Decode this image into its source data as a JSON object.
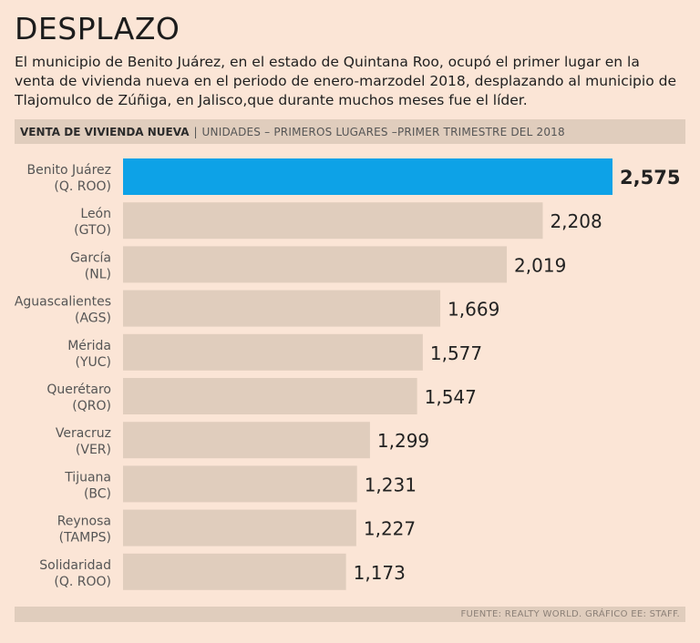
{
  "title": "DESPLAZO",
  "intro": "El municipio de Benito Juárez, en el estado de Quintana Roo, ocupó el primer lugar en la venta de vivienda nueva en el periodo de enero-marzodel 2018, desplazando al municipio de Tlajomulco de Zúñiga, en Jalisco,que durante muchos meses fue el líder.",
  "header": {
    "bold": "VENTA DE VIVIENDA NUEVA",
    "separator": "|",
    "sub": "UNIDADES – PRIMEROS LUGARES –PRIMER TRIMESTRE DEL 2018"
  },
  "footer": "FUENTE: REALTY WORLD. GRÁFICO EE: STAFF.",
  "colors": {
    "background": "#fbe5d6",
    "bar": "#e0cdbd",
    "highlight": "#0da2e7",
    "label": "#555555",
    "value": "#222222"
  },
  "chart_data": {
    "type": "bar",
    "orientation": "horizontal",
    "title": "VENTA DE VIVIENDA NUEVA",
    "subtitle": "UNIDADES – PRIMEROS LUGARES –PRIMER TRIMESTRE DEL 2018",
    "categories": [
      [
        "Benito Juárez",
        "(Q. ROO)"
      ],
      [
        "León",
        "(GTO)"
      ],
      [
        "García",
        "(NL)"
      ],
      [
        "Aguascalientes",
        "(AGS)"
      ],
      [
        "Mérida",
        "(YUC)"
      ],
      [
        "Querétaro",
        "(QRO)"
      ],
      [
        "Veracruz",
        "(VER)"
      ],
      [
        "Tijuana",
        "(BC)"
      ],
      [
        "Reynosa",
        "(TAMPS)"
      ],
      [
        "Solidaridad",
        "(Q. ROO)"
      ]
    ],
    "values": [
      2575,
      2208,
      2019,
      1669,
      1577,
      1547,
      1299,
      1231,
      1227,
      1173
    ],
    "value_labels": [
      "2,575",
      "2,208",
      "2,019",
      "1,669",
      "1,577",
      "1,547",
      "1,299",
      "1,231",
      "1,227",
      "1,173"
    ],
    "highlight_index": 0,
    "xlim": [
      0,
      2575
    ]
  }
}
